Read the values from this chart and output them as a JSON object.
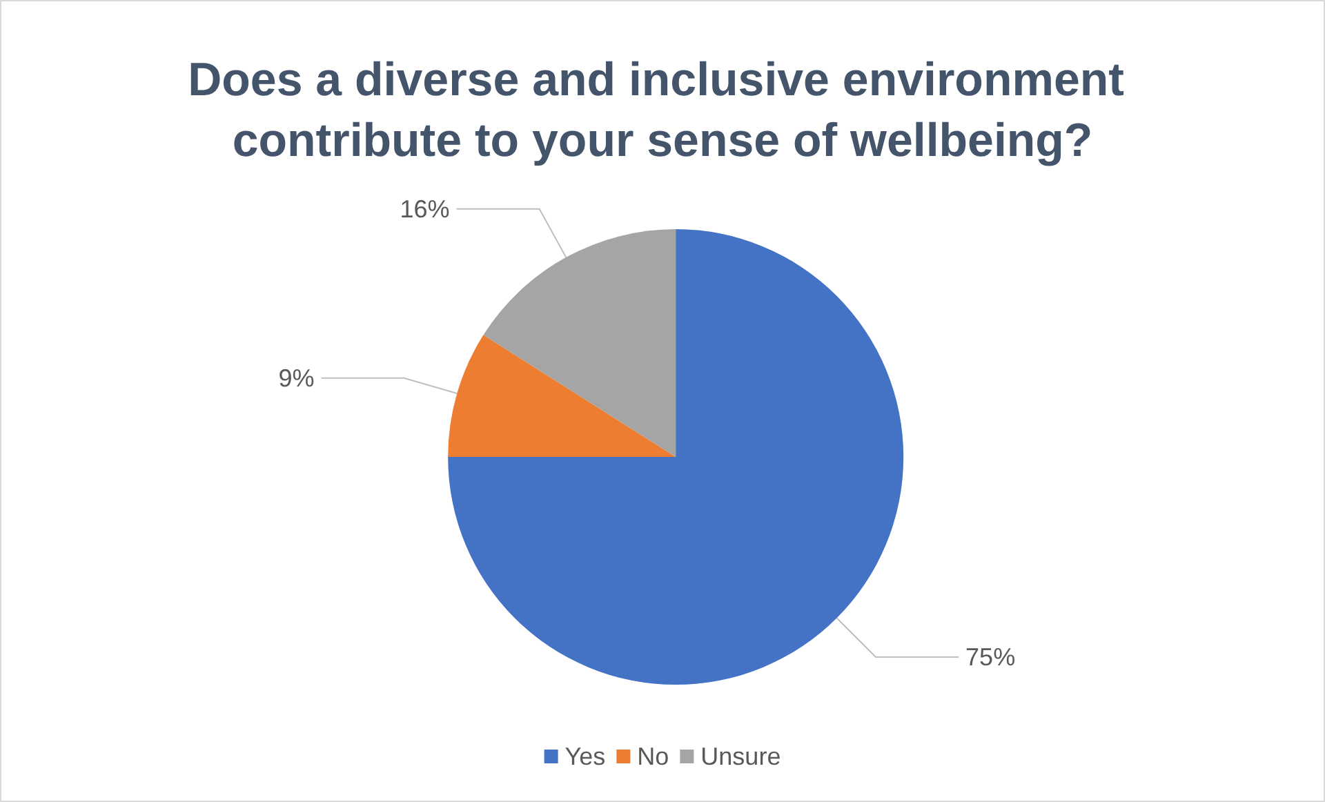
{
  "chart_data": {
    "type": "pie",
    "title": "Does a diverse and inclusive environment contribute to your sense of wellbeing?",
    "categories": [
      "Yes",
      "No",
      "Unsure"
    ],
    "values": [
      75,
      9,
      16
    ],
    "colors": [
      "#4472c4",
      "#ed7d31",
      "#a5a5a5"
    ],
    "value_labels": [
      "75%",
      "9%",
      "16%"
    ],
    "legend": "bottom"
  }
}
